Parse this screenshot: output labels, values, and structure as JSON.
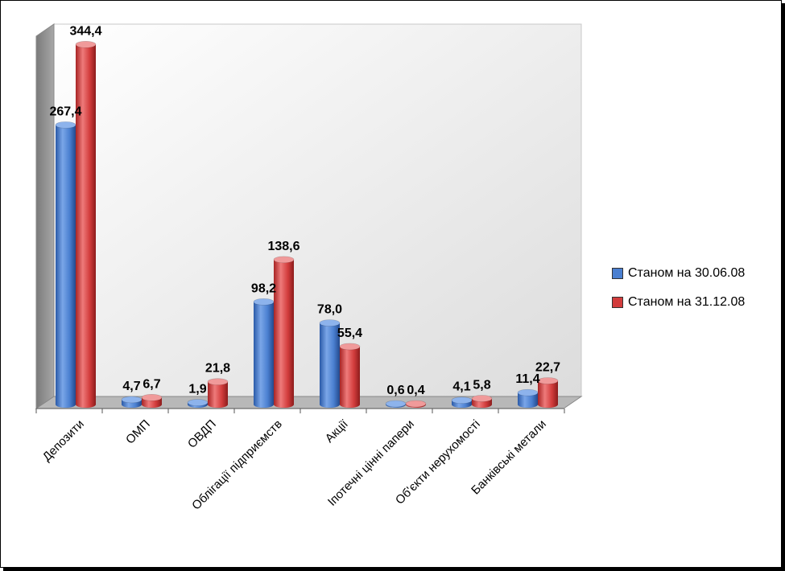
{
  "chart_data": {
    "type": "bar",
    "categories": [
      "Депозити",
      "ОМП",
      "ОВДП",
      "Облігації підприємств",
      "Акції",
      "Іпотечні цінні папери",
      "Об'єкти нерухомості",
      "Банківські метали"
    ],
    "series": [
      {
        "name": "Станом на 30.06.08",
        "values": [
          267.4,
          4.7,
          1.9,
          98.2,
          78.0,
          0.6,
          4.1,
          11.4
        ],
        "labels": [
          "267,4",
          "4,7",
          "1,9",
          "98,2",
          "78,0",
          "0,6",
          "4,1",
          "11,4"
        ],
        "color": "#4a7fd0"
      },
      {
        "name": "Станом на 31.12.08",
        "values": [
          344.4,
          6.7,
          21.8,
          138.6,
          55.4,
          0.4,
          5.8,
          22.7
        ],
        "labels": [
          "344,4",
          "6,7",
          "21,8",
          "138,6",
          "55,4",
          "0,4",
          "5,8",
          "22,7"
        ],
        "color": "#d23c3c"
      }
    ],
    "ylim": [
      0,
      350
    ],
    "grid": false,
    "legend_position": "right",
    "style": "3d-cylinder"
  }
}
